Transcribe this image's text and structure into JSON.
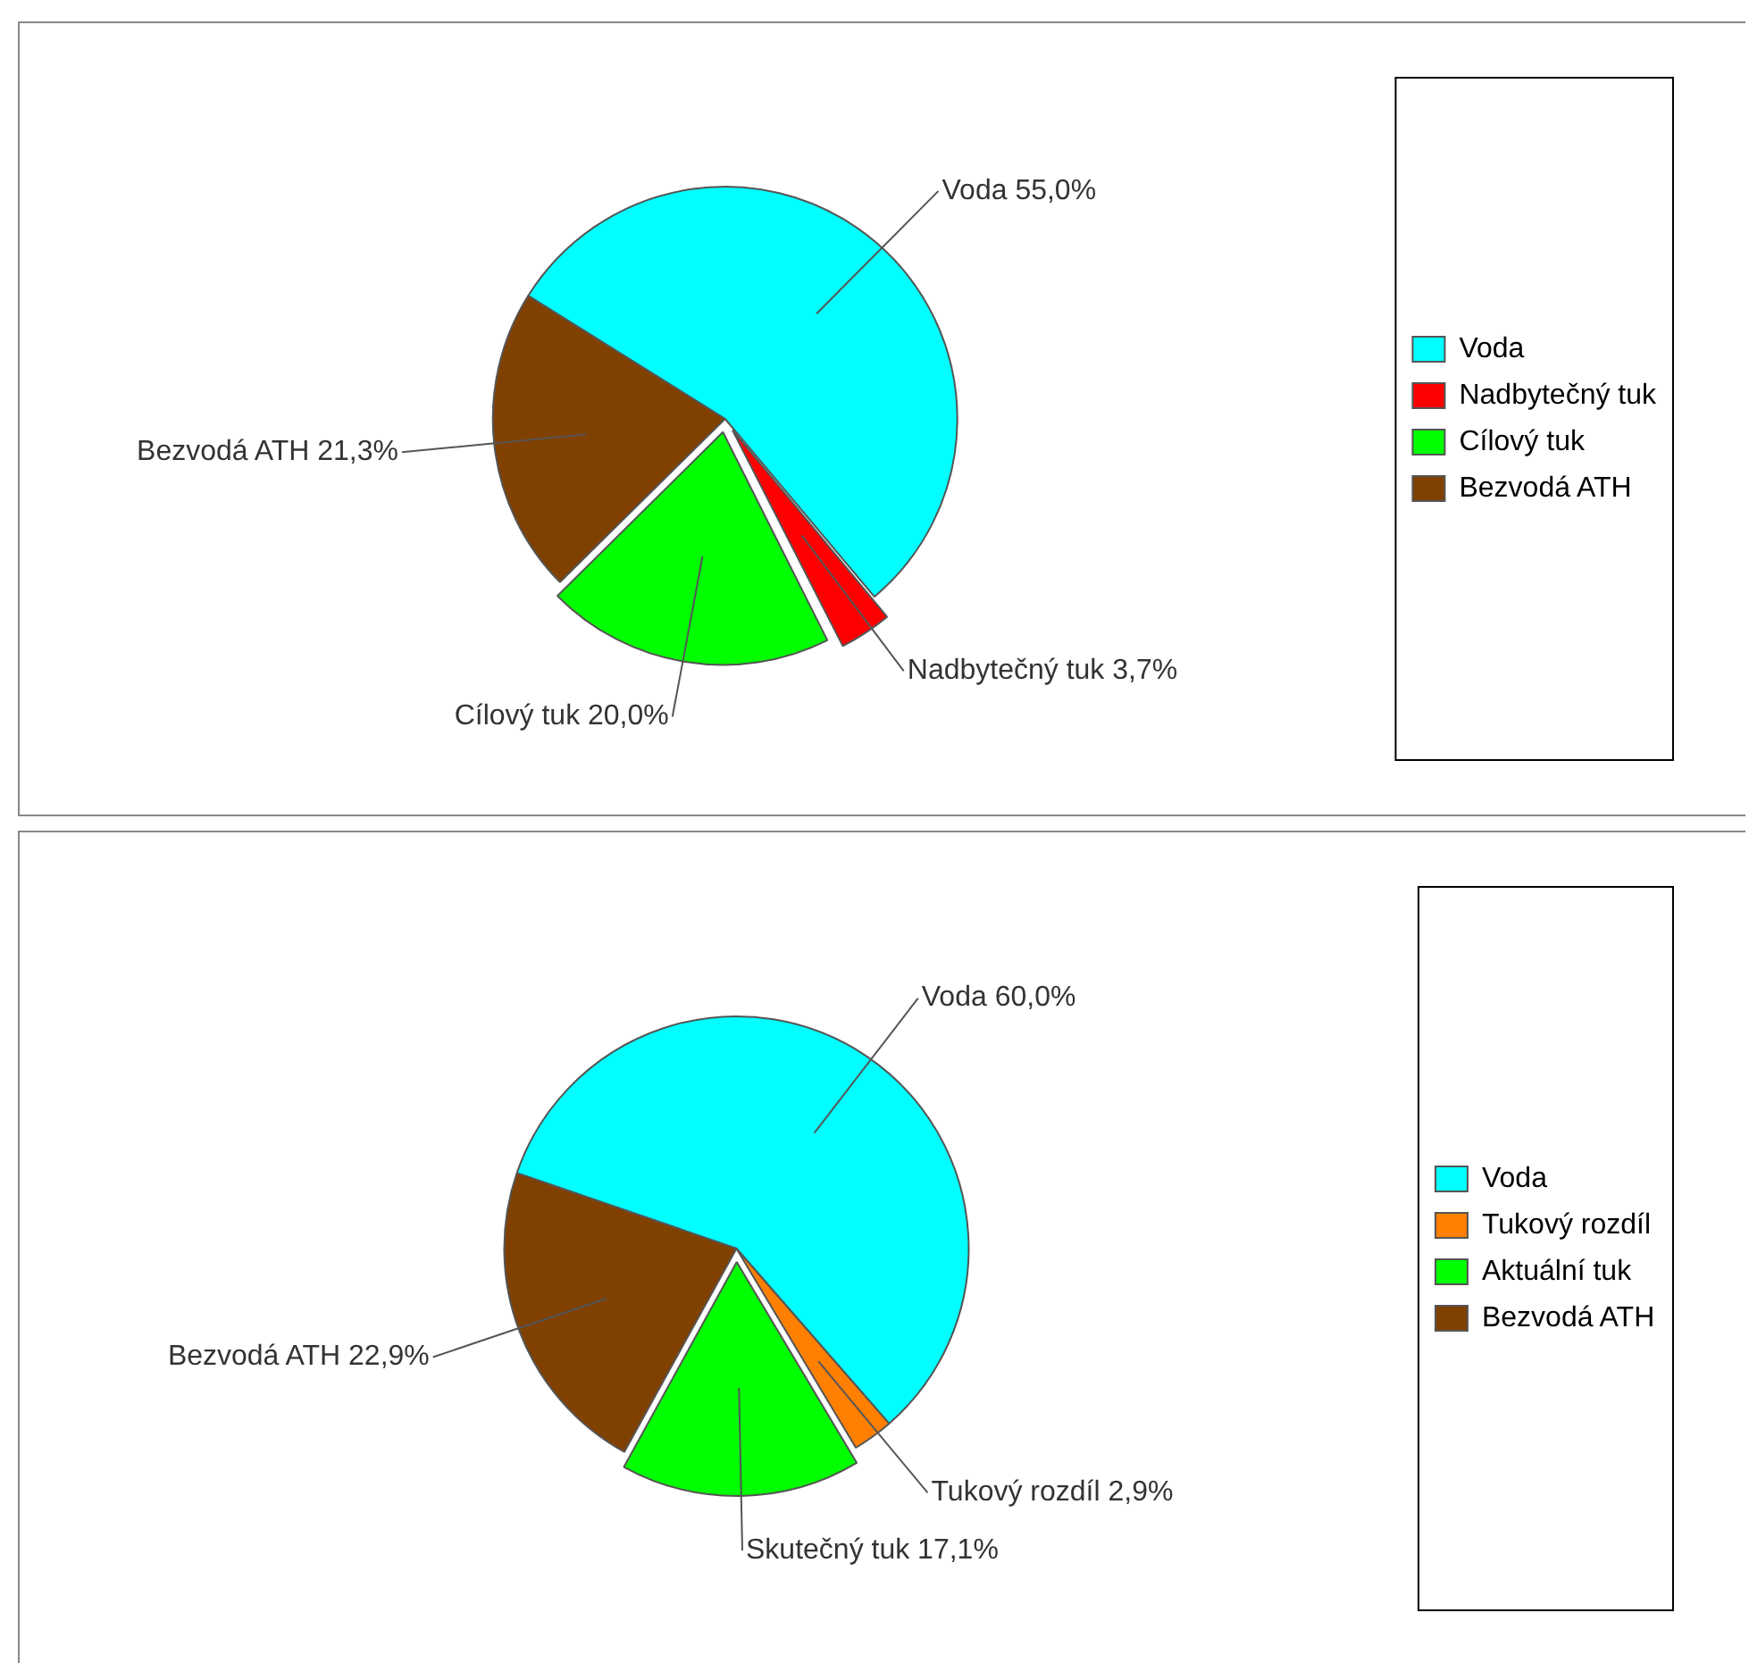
{
  "chart_data": [
    {
      "type": "pie",
      "categories": [
        "Voda",
        "Nadbytečný tuk",
        "Cílový tuk",
        "Bezvodá ATH"
      ],
      "values": [
        55.0,
        3.7,
        20.0,
        21.3
      ],
      "colors": [
        "#00ffff",
        "#ff0000",
        "#00ff00",
        "#804000"
      ],
      "value_labels": [
        "Voda 55,0%",
        "Nadbytečný tuk 3,7%",
        "Cílový tuk 20,0%",
        "Bezvodá ATH 21,3%"
      ],
      "legend": "right"
    },
    {
      "type": "pie",
      "categories": [
        "Voda",
        "Tukový rozdíl",
        "Aktuální tuk",
        "Bezvodá ATH"
      ],
      "values": [
        60.0,
        2.9,
        17.1,
        22.9
      ],
      "colors": [
        "#00ffff",
        "#ff8000",
        "#00ff00",
        "#804000"
      ],
      "value_labels": [
        "Voda 60,0%",
        "Tukový rozdíl 2,9%",
        "Skutečný tuk 17,1%",
        "Bezvodá ATH 22,9%"
      ],
      "legend": "right"
    }
  ]
}
